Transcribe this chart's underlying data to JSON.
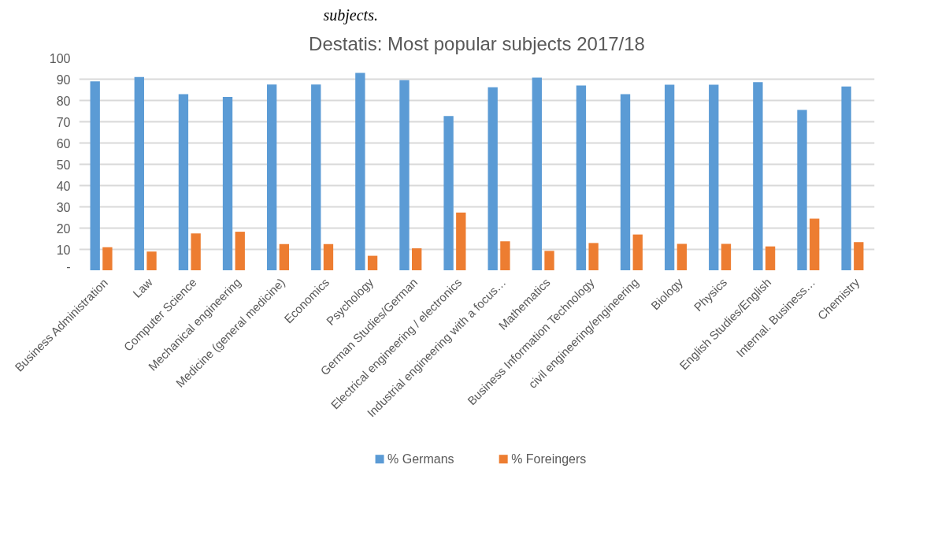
{
  "chart_data": {
    "type": "bar",
    "title": "Destatis: Most popular subjects 2017/18",
    "annotations": [
      "subjects."
    ],
    "categories": [
      "Business Administration",
      "Law",
      "Computer Science",
      "Mechanical engineering",
      "Medicine (general medicine)",
      "Economics",
      "Psychology",
      "German Studies/German",
      "Electrical engineering / electronics",
      "Industrial engineering with a focus…",
      "Mathematics",
      "Business Information Technology",
      "civil engineering/engineering",
      "Biology",
      "Physics",
      "English Studies/English",
      "Internal. Business…",
      "Chemistry"
    ],
    "series": [
      {
        "name": "% Germans",
        "color": "#5b9bd5",
        "values": [
          89,
          91,
          83,
          81.7,
          87.5,
          87.5,
          93,
          89.5,
          72.7,
          86.2,
          90.7,
          87,
          83,
          87.4,
          87.4,
          88.6,
          75.6,
          86.6
        ]
      },
      {
        "name": "% Foreingers",
        "color": "#ed7d31",
        "values": [
          11,
          9,
          17.5,
          18.3,
          12.5,
          12.5,
          7,
          10.5,
          27.3,
          13.8,
          9.3,
          13,
          17,
          12.6,
          12.6,
          11.4,
          24.4,
          13.4
        ]
      }
    ],
    "ylim": [
      0,
      100
    ],
    "yticks": [
      {
        "value": 0,
        "label": "-"
      },
      10,
      20,
      30,
      40,
      50,
      60,
      70,
      80,
      90,
      100
    ],
    "grid": "y",
    "legend": "bottom"
  }
}
